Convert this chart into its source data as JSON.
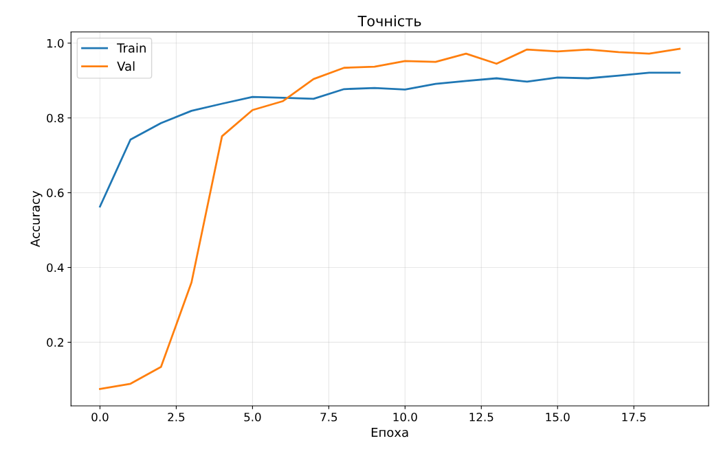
{
  "chart_data": {
    "type": "line",
    "title": "Точність",
    "xlabel": "Епоха",
    "ylabel": "Accuracy",
    "x": [
      0,
      1,
      2,
      3,
      4,
      5,
      6,
      7,
      8,
      9,
      10,
      11,
      12,
      13,
      14,
      15,
      16,
      17,
      18,
      19
    ],
    "series": [
      {
        "name": "Train",
        "color": "#1f77b4",
        "values": [
          0.563,
          0.742,
          0.786,
          0.819,
          0.838,
          0.856,
          0.854,
          0.851,
          0.877,
          0.88,
          0.876,
          0.891,
          0.899,
          0.906,
          0.897,
          0.908,
          0.906,
          0.913,
          0.921,
          0.921
        ]
      },
      {
        "name": "Val",
        "color": "#ff7f0e",
        "values": [
          0.075,
          0.089,
          0.134,
          0.36,
          0.751,
          0.821,
          0.845,
          0.904,
          0.934,
          0.937,
          0.952,
          0.95,
          0.972,
          0.945,
          0.983,
          0.978,
          0.983,
          0.976,
          0.972,
          0.985
        ]
      }
    ],
    "xlim": [
      -0.95,
      19.95
    ],
    "xticks": [
      {
        "value": 0,
        "label": "0.0"
      },
      {
        "value": 2.5,
        "label": "2.5"
      },
      {
        "value": 5,
        "label": "5.0"
      },
      {
        "value": 7.5,
        "label": "7.5"
      },
      {
        "value": 10,
        "label": "10.0"
      },
      {
        "value": 12.5,
        "label": "12.5"
      },
      {
        "value": 15,
        "label": "15.0"
      },
      {
        "value": 17.5,
        "label": "17.5"
      }
    ],
    "ylim": [
      0.03,
      1.03
    ],
    "yticks": [
      0.2,
      0.4,
      0.6,
      0.8,
      {
        "value": 1.0,
        "label": "1.0"
      }
    ],
    "grid": true,
    "legend": "top left",
    "marker": "none",
    "line_style": "solid"
  }
}
